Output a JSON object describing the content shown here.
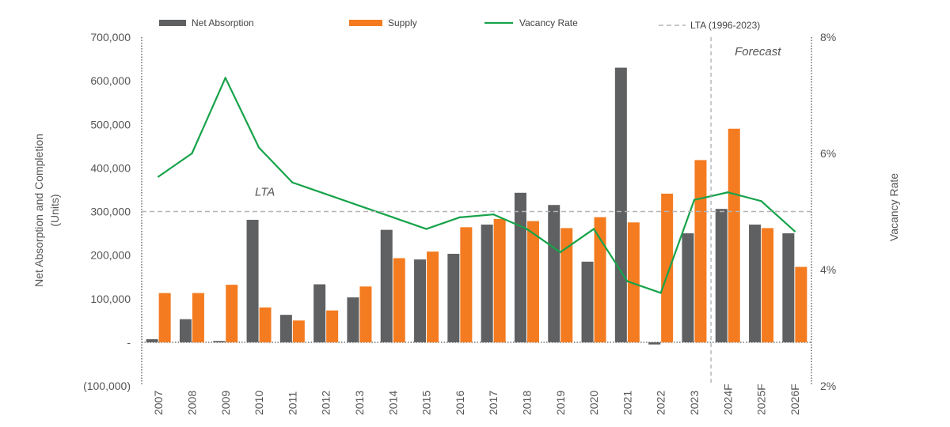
{
  "chart_data": {
    "type": "bar",
    "categories": [
      "2007",
      "2008",
      "2009",
      "2010",
      "2011",
      "2012",
      "2013",
      "2014",
      "2015",
      "2016",
      "2017",
      "2018",
      "2019",
      "2020",
      "2021",
      "2022",
      "2023",
      "2024F",
      "2025F",
      "2026F"
    ],
    "series": [
      {
        "name": "Net Absorption",
        "type": "bar",
        "axis": "left",
        "color": "#5f6062",
        "values": [
          7000,
          53000,
          3000,
          281000,
          63000,
          133000,
          103000,
          258000,
          190000,
          203000,
          270000,
          343000,
          315000,
          185000,
          630000,
          -5000,
          250000,
          306000,
          270000,
          250000
        ]
      },
      {
        "name": "Supply",
        "type": "bar",
        "axis": "left",
        "color": "#f47b20",
        "values": [
          113000,
          113000,
          132000,
          80000,
          50000,
          73000,
          128000,
          193000,
          208000,
          264000,
          283000,
          278000,
          262000,
          287000,
          275000,
          341000,
          418000,
          490000,
          262000,
          173000
        ]
      },
      {
        "name": "Vacancy Rate",
        "type": "line",
        "axis": "right",
        "color": "#16a34a",
        "values": [
          5.6,
          6.0,
          7.3,
          6.1,
          5.5,
          5.3,
          5.1,
          4.9,
          4.7,
          4.9,
          4.95,
          4.7,
          4.3,
          4.7,
          3.8,
          3.6,
          5.2,
          5.33,
          5.18,
          4.66
        ]
      }
    ],
    "lta": {
      "legend": "LTA (1996-2023)",
      "label": "LTA",
      "value": 300000
    },
    "forecast": {
      "label": "Forecast",
      "start_category": "2024F"
    },
    "ylabel_left": [
      "Net Absorption and Completion",
      "(Units)"
    ],
    "ylabel_right": "Vacancy Rate",
    "ylim_left": [
      -100000,
      700000
    ],
    "ylim_right": [
      2,
      8
    ],
    "yticks_left": [
      {
        "value": -100000,
        "label": "(100,000)"
      },
      {
        "value": 0,
        "label": "-"
      },
      {
        "value": 100000,
        "label": "100,000"
      },
      {
        "value": 200000,
        "label": "200,000"
      },
      {
        "value": 300000,
        "label": "300,000"
      },
      {
        "value": 400000,
        "label": "400,000"
      },
      {
        "value": 500000,
        "label": "500,000"
      },
      {
        "value": 600000,
        "label": "600,000"
      },
      {
        "value": 700000,
        "label": "700,000"
      }
    ],
    "yticks_right": [
      {
        "value": 2,
        "label": "2%"
      },
      {
        "value": 4,
        "label": "4%"
      },
      {
        "value": 6,
        "label": "6%"
      },
      {
        "value": 8,
        "label": "8%"
      }
    ],
    "legend_position": "top",
    "grid": false
  }
}
